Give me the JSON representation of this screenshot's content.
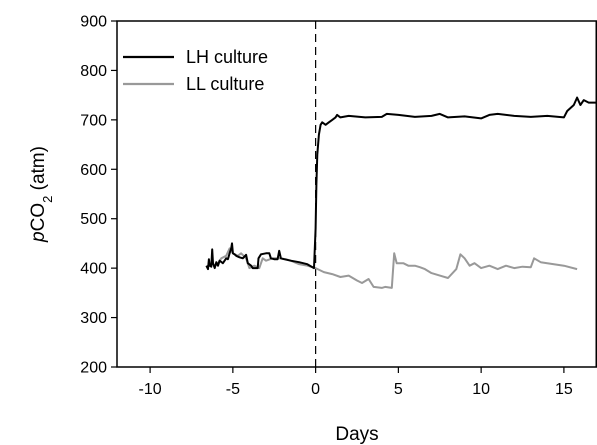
{
  "chart_data": {
    "type": "line",
    "xlabel": "Days",
    "ylabel_parts": {
      "italic": "p",
      "main": "CO",
      "sub": "2",
      "unit": " (atm)"
    },
    "xlim": [
      -12,
      17
    ],
    "ylim": [
      200,
      900
    ],
    "xticks": [
      -10,
      -5,
      0,
      5,
      10,
      15
    ],
    "yticks": [
      200,
      300,
      400,
      500,
      600,
      700,
      800,
      900
    ],
    "vline": {
      "x": 0,
      "style": "dashed"
    },
    "legend_position": "top-left",
    "series": [
      {
        "name": "LH culture",
        "color": "#000000",
        "points": [
          [
            -6.6,
            405
          ],
          [
            -6.5,
            398
          ],
          [
            -6.45,
            418
          ],
          [
            -6.4,
            405
          ],
          [
            -6.3,
            403
          ],
          [
            -6.25,
            438
          ],
          [
            -6.2,
            410
          ],
          [
            -6.1,
            400
          ],
          [
            -6.0,
            412
          ],
          [
            -5.9,
            405
          ],
          [
            -5.8,
            415
          ],
          [
            -5.6,
            410
          ],
          [
            -5.4,
            420
          ],
          [
            -5.3,
            418
          ],
          [
            -5.2,
            430
          ],
          [
            -5.1,
            440
          ],
          [
            -5.05,
            450
          ],
          [
            -5.0,
            430
          ],
          [
            -4.9,
            428
          ],
          [
            -4.8,
            425
          ],
          [
            -4.6,
            422
          ],
          [
            -4.4,
            420
          ],
          [
            -4.2,
            427
          ],
          [
            -4.1,
            410
          ],
          [
            -3.9,
            405
          ],
          [
            -3.8,
            400
          ],
          [
            -3.5,
            400
          ],
          [
            -3.45,
            420
          ],
          [
            -3.3,
            428
          ],
          [
            -3.0,
            430
          ],
          [
            -2.8,
            430
          ],
          [
            -2.7,
            420
          ],
          [
            -2.5,
            418
          ],
          [
            -2.3,
            418
          ],
          [
            -2.2,
            435
          ],
          [
            -2.1,
            420
          ],
          [
            -1.9,
            418
          ],
          [
            -1.5,
            415
          ],
          [
            -1.0,
            412
          ],
          [
            -0.5,
            408
          ],
          [
            -0.1,
            400
          ],
          [
            0.0,
            480
          ],
          [
            0.05,
            570
          ],
          [
            0.1,
            630
          ],
          [
            0.2,
            670
          ],
          [
            0.3,
            690
          ],
          [
            0.4,
            695
          ],
          [
            0.6,
            690
          ],
          [
            0.8,
            695
          ],
          [
            1.0,
            700
          ],
          [
            1.2,
            705
          ],
          [
            1.3,
            710
          ],
          [
            1.5,
            705
          ],
          [
            2.0,
            708
          ],
          [
            3.0,
            705
          ],
          [
            4.0,
            706
          ],
          [
            4.3,
            712
          ],
          [
            5.0,
            710
          ],
          [
            6.0,
            706
          ],
          [
            7.0,
            708
          ],
          [
            7.5,
            712
          ],
          [
            8.0,
            705
          ],
          [
            9.0,
            707
          ],
          [
            10.0,
            703
          ],
          [
            10.5,
            710
          ],
          [
            11.0,
            712
          ],
          [
            12.0,
            708
          ],
          [
            13.0,
            706
          ],
          [
            14.0,
            708
          ],
          [
            15.0,
            705
          ],
          [
            15.2,
            718
          ],
          [
            15.6,
            730
          ],
          [
            15.8,
            745
          ],
          [
            16.0,
            730
          ],
          [
            16.2,
            740
          ],
          [
            16.5,
            735
          ],
          [
            17.0,
            735
          ]
        ]
      },
      {
        "name": "LL culture",
        "color": "#999999",
        "points": [
          [
            -6.0,
            405
          ],
          [
            -5.7,
            420
          ],
          [
            -5.4,
            425
          ],
          [
            -5.2,
            440
          ],
          [
            -5.0,
            430
          ],
          [
            -4.7,
            425
          ],
          [
            -4.5,
            430
          ],
          [
            -4.2,
            420
          ],
          [
            -4.0,
            400
          ],
          [
            -3.7,
            405
          ],
          [
            -3.4,
            400
          ],
          [
            -3.2,
            420
          ],
          [
            -3.0,
            415
          ],
          [
            -2.6,
            420
          ],
          [
            -2.2,
            420
          ],
          [
            -1.8,
            418
          ],
          [
            -1.5,
            415
          ],
          [
            -1.0,
            408
          ],
          [
            -0.5,
            405
          ],
          [
            0.0,
            400
          ],
          [
            0.5,
            392
          ],
          [
            1.0,
            388
          ],
          [
            1.5,
            382
          ],
          [
            2.0,
            385
          ],
          [
            2.5,
            375
          ],
          [
            2.8,
            370
          ],
          [
            3.2,
            378
          ],
          [
            3.5,
            362
          ],
          [
            4.0,
            360
          ],
          [
            4.2,
            362
          ],
          [
            4.6,
            360
          ],
          [
            4.75,
            430
          ],
          [
            4.9,
            410
          ],
          [
            5.3,
            410
          ],
          [
            5.6,
            405
          ],
          [
            6.0,
            405
          ],
          [
            6.3,
            402
          ],
          [
            6.6,
            398
          ],
          [
            7.0,
            390
          ],
          [
            7.5,
            385
          ],
          [
            8.0,
            380
          ],
          [
            8.5,
            398
          ],
          [
            8.75,
            428
          ],
          [
            9.0,
            420
          ],
          [
            9.3,
            405
          ],
          [
            9.6,
            410
          ],
          [
            10.0,
            400
          ],
          [
            10.5,
            405
          ],
          [
            11.0,
            398
          ],
          [
            11.5,
            405
          ],
          [
            12.0,
            400
          ],
          [
            12.5,
            403
          ],
          [
            13.0,
            402
          ],
          [
            13.2,
            420
          ],
          [
            13.6,
            412
          ],
          [
            14.0,
            410
          ],
          [
            15.0,
            405
          ],
          [
            15.8,
            398
          ]
        ]
      }
    ]
  }
}
